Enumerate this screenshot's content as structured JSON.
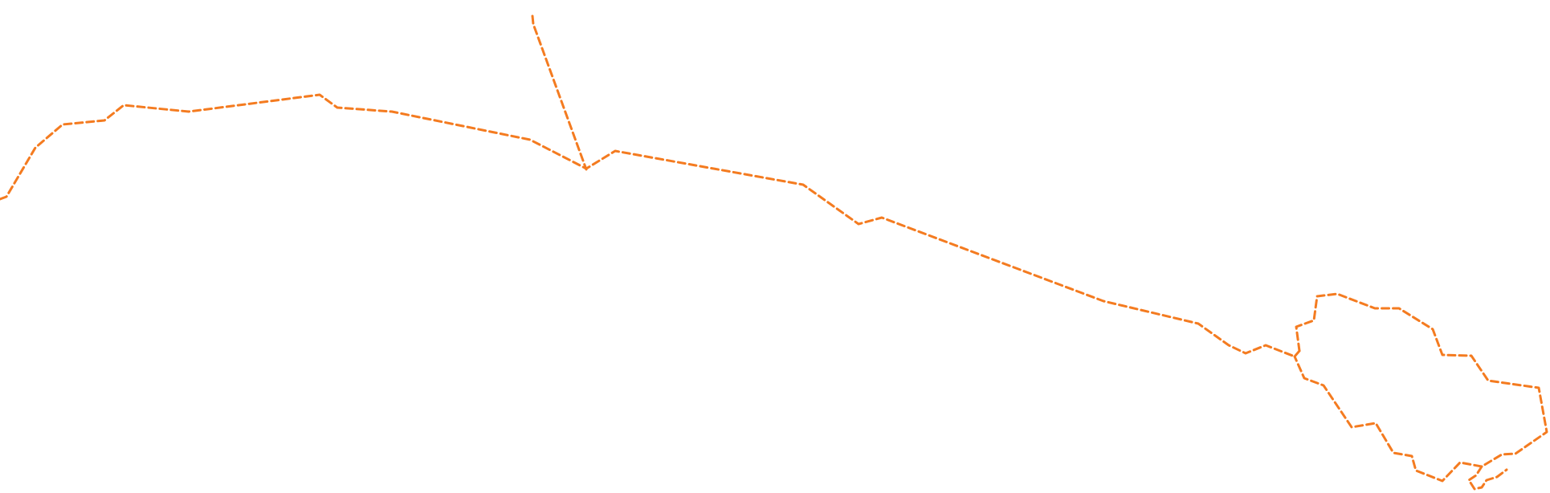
{
  "map": {
    "route_color": "#f47b20",
    "route_style": "dashed",
    "background_color": "#ffffff"
  }
}
